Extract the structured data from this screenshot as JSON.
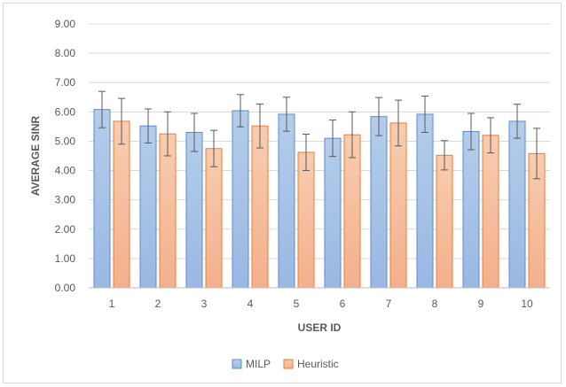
{
  "chart_data": {
    "type": "bar",
    "title": "",
    "xlabel": "USER ID",
    "ylabel": "AVERAGE SINR",
    "ylim": [
      0,
      9
    ],
    "ytick_step": 1,
    "ytick_decimals": 2,
    "grid": true,
    "legend_position": "bottom",
    "categories": [
      "1",
      "2",
      "3",
      "4",
      "5",
      "6",
      "7",
      "8",
      "9",
      "10"
    ],
    "series": [
      {
        "name": "MILP",
        "color_fill_top": "#b4cdea",
        "color_fill_bottom": "#9ab8e2",
        "color_stroke": "#5b8bd0",
        "values": [
          6.08,
          5.52,
          5.3,
          6.04,
          5.92,
          5.1,
          5.84,
          5.92,
          5.33,
          5.68
        ],
        "error": [
          0.62,
          0.58,
          0.65,
          0.55,
          0.58,
          0.62,
          0.65,
          0.62,
          0.62,
          0.58
        ]
      },
      {
        "name": "Heuristic",
        "color_fill_top": "#f8cdb0",
        "color_fill_bottom": "#f3b08d",
        "color_stroke": "#ed7d31",
        "values": [
          5.68,
          5.25,
          4.75,
          5.52,
          4.62,
          5.22,
          5.62,
          4.52,
          5.2,
          4.58
        ],
        "error": [
          0.78,
          0.75,
          0.62,
          0.75,
          0.62,
          0.78,
          0.78,
          0.5,
          0.6,
          0.86
        ]
      }
    ]
  }
}
